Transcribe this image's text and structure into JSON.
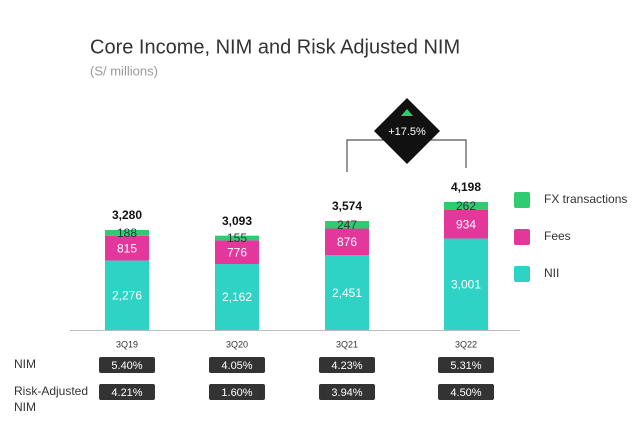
{
  "chart_data": {
    "type": "stacked_bar",
    "title": "Core Income, NIM and Risk Adjusted NIM",
    "subtitle": "(S/ millions)",
    "categories": [
      "3Q19",
      "3Q20",
      "3Q21",
      "3Q22"
    ],
    "series": [
      {
        "name": "NII",
        "color": "#2ed3c6",
        "values": [
          2276,
          2162,
          2451,
          3001
        ],
        "value_labels": [
          "2,276",
          "2,162",
          "2,451",
          "3,001"
        ]
      },
      {
        "name": "Fees",
        "color": "#e3379c",
        "values": [
          815,
          776,
          876,
          934
        ],
        "value_labels": [
          "815",
          "776",
          "876",
          "934"
        ]
      },
      {
        "name": "FX transactions",
        "color": "#2ecc71",
        "values": [
          188,
          155,
          247,
          262
        ],
        "value_labels": [
          "188",
          "155",
          "247",
          "262"
        ]
      }
    ],
    "totals": [
      3280,
      3093,
      3574,
      4198
    ],
    "total_labels": [
      "3,280",
      "3,093",
      "3,574",
      "4,198"
    ],
    "annotation": "+17.5%",
    "table": {
      "rows": [
        {
          "label": "NIM",
          "values": [
            "5.40%",
            "4.05%",
            "4.23%",
            "5.31%"
          ]
        },
        {
          "label": "Risk-Adjusted NIM",
          "values": [
            "4.21%",
            "1.60%",
            "3.94%",
            "4.50%"
          ]
        }
      ]
    }
  }
}
